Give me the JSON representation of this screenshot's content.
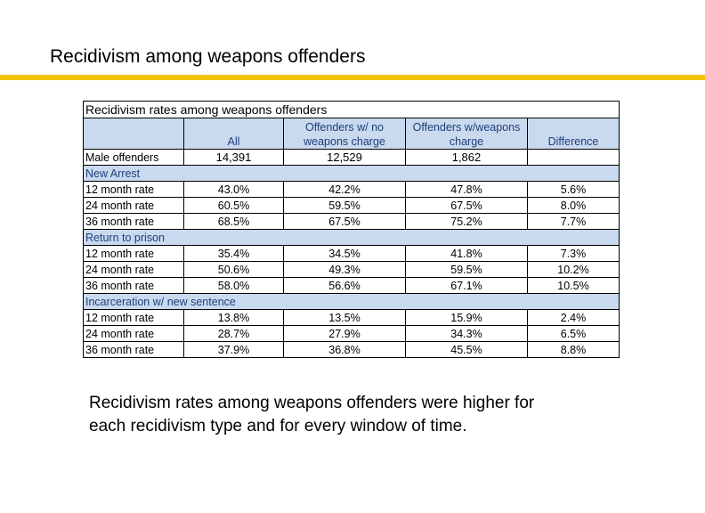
{
  "slide": {
    "title": "Recidivism among weapons offenders",
    "caption_line1": "Recidivism rates among weapons offenders were higher for",
    "caption_line2": "each recidivism type and for every window of time."
  },
  "colors": {
    "accent_rule": "#f5c400",
    "header_fill": "#c9d9ee",
    "header_text": "#1f3f7a"
  },
  "table": {
    "title": "Recidivism rates among weapons offenders",
    "headers": {
      "blank": "",
      "all": "All",
      "no_weapons": "Offenders w/ no weapons charge",
      "weapons": "Offenders w/weapons charge",
      "difference": "Difference"
    },
    "male": {
      "label": "Male offenders",
      "all": "14,391",
      "no_weapons": "12,529",
      "weapons": "1,862",
      "difference": ""
    },
    "sections": [
      {
        "title": "New Arrest",
        "rows": [
          {
            "label": "12 month rate",
            "all": "43.0%",
            "no_weapons": "42.2%",
            "weapons": "47.8%",
            "difference": "5.6%"
          },
          {
            "label": "24 month rate",
            "all": "60.5%",
            "no_weapons": "59.5%",
            "weapons": "67.5%",
            "difference": "8.0%"
          },
          {
            "label": "36 month rate",
            "all": "68.5%",
            "no_weapons": "67.5%",
            "weapons": "75.2%",
            "difference": "7.7%"
          }
        ]
      },
      {
        "title": "Return to prison",
        "rows": [
          {
            "label": "12 month rate",
            "all": "35.4%",
            "no_weapons": "34.5%",
            "weapons": "41.8%",
            "difference": "7.3%"
          },
          {
            "label": "24 month rate",
            "all": "50.6%",
            "no_weapons": "49.3%",
            "weapons": "59.5%",
            "difference": "10.2%"
          },
          {
            "label": "36 month rate",
            "all": "58.0%",
            "no_weapons": "56.6%",
            "weapons": "67.1%",
            "difference": "10.5%"
          }
        ]
      },
      {
        "title": "Incarceration w/ new sentence",
        "rows": [
          {
            "label": "12 month rate",
            "all": "13.8%",
            "no_weapons": "13.5%",
            "weapons": "15.9%",
            "difference": "2.4%"
          },
          {
            "label": "24 month rate",
            "all": "28.7%",
            "no_weapons": "27.9%",
            "weapons": "34.3%",
            "difference": "6.5%"
          },
          {
            "label": "36 month rate",
            "all": "37.9%",
            "no_weapons": "36.8%",
            "weapons": "45.5%",
            "difference": "8.8%"
          }
        ]
      }
    ]
  }
}
